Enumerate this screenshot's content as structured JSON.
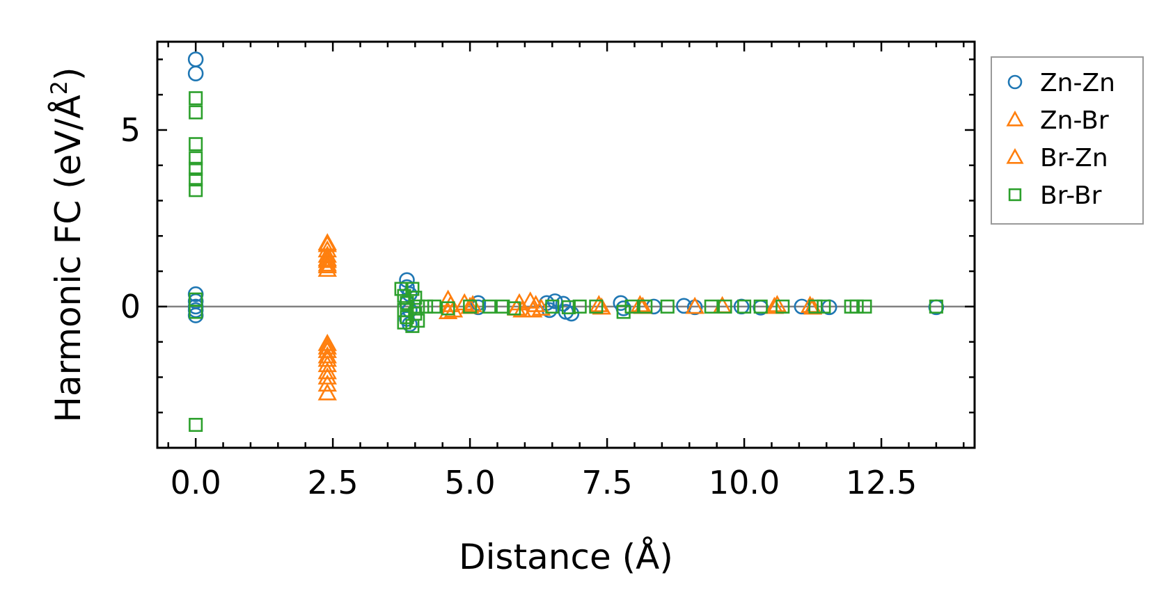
{
  "chart_data": {
    "type": "scatter",
    "title": "",
    "xlabel": "Distance (Å)",
    "ylabel": "Harmonic FC (eV/Å",
    "ylabel_superscript": "2",
    "ylabel_suffix": ")",
    "xlim": [
      -0.7,
      14.2
    ],
    "ylim": [
      -4.0,
      7.5
    ],
    "xticks": [
      0.0,
      2.5,
      5.0,
      7.5,
      10.0,
      12.5
    ],
    "xtick_labels": [
      "0.0",
      "2.5",
      "5.0",
      "7.5",
      "10.0",
      "12.5"
    ],
    "yticks": [
      0,
      5
    ],
    "ytick_labels": [
      "0",
      "5"
    ],
    "zero_line": true,
    "grid": false,
    "legend_position": "outside-right",
    "series": [
      {
        "name": "Zn-Zn",
        "marker": "circle",
        "color": "#1f77b4",
        "points": [
          [
            0.0,
            7.0
          ],
          [
            0.0,
            6.6
          ],
          [
            0.0,
            0.35
          ],
          [
            0.0,
            0.15
          ],
          [
            0.0,
            0.0
          ],
          [
            0.0,
            -0.1
          ],
          [
            0.0,
            -0.25
          ],
          [
            3.85,
            0.75
          ],
          [
            3.85,
            0.55
          ],
          [
            3.9,
            0.35
          ],
          [
            3.85,
            0.1
          ],
          [
            3.9,
            -0.1
          ],
          [
            3.85,
            -0.35
          ],
          [
            3.9,
            -0.5
          ],
          [
            5.15,
            0.1
          ],
          [
            5.15,
            -0.02
          ],
          [
            6.4,
            0.1
          ],
          [
            6.45,
            -0.1
          ],
          [
            6.55,
            0.15
          ],
          [
            6.7,
            0.08
          ],
          [
            6.75,
            -0.15
          ],
          [
            6.85,
            -0.2
          ],
          [
            7.75,
            0.1
          ],
          [
            7.8,
            -0.05
          ],
          [
            8.35,
            0.0
          ],
          [
            8.9,
            0.02
          ],
          [
            9.1,
            -0.02
          ],
          [
            9.95,
            0.0
          ],
          [
            10.3,
            -0.03
          ],
          [
            11.05,
            0.0
          ],
          [
            11.55,
            -0.02
          ],
          [
            13.5,
            -0.02
          ]
        ]
      },
      {
        "name": "Zn-Br",
        "marker": "triangle",
        "color": "#ff7f0e",
        "points": [
          [
            2.4,
            1.8
          ],
          [
            2.4,
            1.6
          ],
          [
            2.4,
            1.45
          ],
          [
            2.4,
            1.3
          ],
          [
            2.4,
            1.2
          ],
          [
            2.4,
            1.05
          ],
          [
            2.4,
            -1.05
          ],
          [
            2.4,
            -1.25
          ],
          [
            2.4,
            -1.5
          ],
          [
            2.4,
            -1.65
          ],
          [
            2.4,
            -1.85
          ],
          [
            2.4,
            -2.0
          ],
          [
            4.6,
            0.2
          ],
          [
            4.6,
            -0.15
          ],
          [
            4.9,
            0.1
          ],
          [
            5.0,
            0.0
          ],
          [
            5.9,
            0.1
          ],
          [
            5.95,
            -0.1
          ],
          [
            6.1,
            0.15
          ],
          [
            6.2,
            0.05
          ],
          [
            6.3,
            -0.05
          ],
          [
            7.35,
            0.05
          ],
          [
            8.1,
            0.05
          ],
          [
            9.1,
            0.0
          ],
          [
            10.6,
            0.05
          ],
          [
            11.2,
            0.03
          ]
        ]
      },
      {
        "name": "Br-Zn",
        "marker": "triangle",
        "color": "#ff7f0e",
        "points": [
          [
            2.4,
            1.75
          ],
          [
            2.4,
            1.35
          ],
          [
            2.4,
            1.15
          ],
          [
            2.4,
            -1.15
          ],
          [
            2.4,
            -1.4
          ],
          [
            2.4,
            -2.2
          ],
          [
            2.4,
            -2.45
          ],
          [
            4.65,
            0.05
          ],
          [
            4.7,
            -0.1
          ],
          [
            5.05,
            0.05
          ],
          [
            5.85,
            -0.05
          ],
          [
            6.15,
            -0.1
          ],
          [
            7.4,
            -0.02
          ],
          [
            8.15,
            0.0
          ],
          [
            9.6,
            0.02
          ],
          [
            10.55,
            0.0
          ],
          [
            11.25,
            -0.02
          ]
        ]
      },
      {
        "name": "Br-Br",
        "marker": "square",
        "color": "#2ca02c",
        "points": [
          [
            0.0,
            5.9
          ],
          [
            0.0,
            5.5
          ],
          [
            0.0,
            4.6
          ],
          [
            0.0,
            4.2
          ],
          [
            0.0,
            3.9
          ],
          [
            0.0,
            3.6
          ],
          [
            0.0,
            3.3
          ],
          [
            0.0,
            0.2
          ],
          [
            0.0,
            -0.15
          ],
          [
            0.0,
            -3.35
          ],
          [
            3.75,
            0.5
          ],
          [
            3.8,
            0.3
          ],
          [
            3.85,
            0.1
          ],
          [
            3.8,
            -0.1
          ],
          [
            3.85,
            -0.3
          ],
          [
            3.8,
            -0.45
          ],
          [
            3.95,
            0.5
          ],
          [
            4.0,
            0.25
          ],
          [
            4.05,
            0.0
          ],
          [
            4.0,
            -0.2
          ],
          [
            4.05,
            -0.4
          ],
          [
            3.95,
            -0.55
          ],
          [
            4.2,
            0.0
          ],
          [
            4.35,
            0.0
          ],
          [
            4.6,
            -0.05
          ],
          [
            5.0,
            0.0
          ],
          [
            5.35,
            0.0
          ],
          [
            5.6,
            0.0
          ],
          [
            5.8,
            -0.05
          ],
          [
            6.5,
            0.0
          ],
          [
            6.8,
            -0.02
          ],
          [
            7.0,
            0.0
          ],
          [
            7.3,
            0.0
          ],
          [
            7.8,
            -0.15
          ],
          [
            7.95,
            0.0
          ],
          [
            8.2,
            0.0
          ],
          [
            8.6,
            0.0
          ],
          [
            9.4,
            0.0
          ],
          [
            9.65,
            0.0
          ],
          [
            10.0,
            0.0
          ],
          [
            10.3,
            0.0
          ],
          [
            10.7,
            0.0
          ],
          [
            11.3,
            0.0
          ],
          [
            11.45,
            0.0
          ],
          [
            11.95,
            0.0
          ],
          [
            12.05,
            0.0
          ],
          [
            12.2,
            0.0
          ],
          [
            13.5,
            0.0
          ]
        ]
      }
    ]
  }
}
